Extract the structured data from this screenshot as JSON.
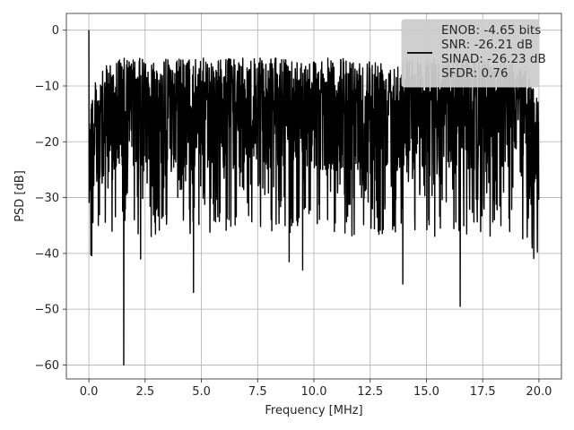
{
  "chart_data": {
    "type": "line",
    "title": "",
    "xlabel": "Frequency [MHz]",
    "ylabel": "PSD [dB]",
    "xlim": [
      -1.0,
      21.0
    ],
    "ylim": [
      -62.5,
      3.0
    ],
    "xticks": [
      0.0,
      2.5,
      5.0,
      7.5,
      10.0,
      12.5,
      15.0,
      17.5,
      20.0
    ],
    "xtick_labels": [
      "0.0",
      "2.5",
      "5.0",
      "7.5",
      "10.0",
      "12.5",
      "15.0",
      "17.5",
      "20.0"
    ],
    "yticks": [
      0,
      -10,
      -20,
      -30,
      -40,
      -50,
      -60
    ],
    "ytick_labels": [
      "0",
      "−10",
      "−20",
      "−30",
      "−40",
      "−50",
      "−60"
    ],
    "grid": true,
    "legend_position": "top-right",
    "legend_lines": [
      "ENOB: -4.65 bits",
      "SNR: -26.21 dB",
      "SINAD: -26.23 dB",
      "SFDR: 0.76"
    ],
    "series": [
      {
        "color": "#000000",
        "x_range": [
          0,
          20
        ],
        "notable_points": [
          {
            "x": 0.0,
            "y": 0.0
          },
          {
            "x": 1.55,
            "y": -60.0
          },
          {
            "x": 4.65,
            "y": -47.0
          },
          {
            "x": 13.95,
            "y": -45.5
          },
          {
            "x": 16.5,
            "y": -49.5
          },
          {
            "x": 9.5,
            "y": -43.0
          },
          {
            "x": 8.9,
            "y": -41.5
          },
          {
            "x": 2.3,
            "y": -41.0
          }
        ]
      }
    ]
  }
}
